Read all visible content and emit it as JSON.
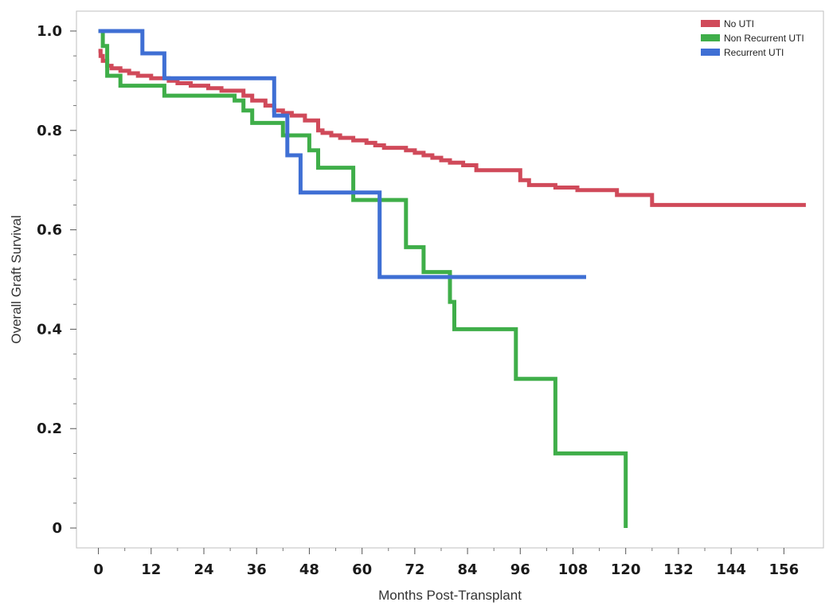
{
  "chart_data": {
    "type": "line",
    "step": true,
    "xlabel": "Months Post-Transplant",
    "ylabel": "Overall Graft Survival",
    "xlim": [
      -5,
      165
    ],
    "ylim": [
      -0.04,
      1.04
    ],
    "x_ticks": [
      0,
      12,
      24,
      36,
      48,
      60,
      72,
      84,
      96,
      108,
      120,
      132,
      144,
      156
    ],
    "y_ticks": [
      0,
      0.2,
      0.4,
      0.6,
      0.8,
      1.0
    ],
    "y_tick_labels": [
      "0",
      "0.2",
      "0.4",
      "0.6",
      "0.8",
      "1.0"
    ],
    "grid": false,
    "legend_position": "top-right",
    "series": [
      {
        "name": "No UTI",
        "color": "#d04a5a",
        "x": [
          0,
          0.5,
          1,
          2,
          3,
          5,
          7,
          9,
          12,
          16,
          18,
          21,
          25,
          28,
          33,
          35,
          38,
          40,
          42,
          44,
          47,
          50,
          51,
          53,
          55,
          58,
          61,
          63,
          65,
          70,
          72,
          74,
          76,
          78,
          80,
          83,
          86,
          96,
          98,
          104,
          109,
          118,
          126,
          161
        ],
        "y": [
          0.96,
          0.95,
          0.94,
          0.93,
          0.925,
          0.92,
          0.915,
          0.91,
          0.905,
          0.9,
          0.895,
          0.89,
          0.885,
          0.88,
          0.87,
          0.86,
          0.85,
          0.84,
          0.835,
          0.83,
          0.82,
          0.8,
          0.795,
          0.79,
          0.785,
          0.78,
          0.775,
          0.77,
          0.765,
          0.76,
          0.755,
          0.75,
          0.745,
          0.74,
          0.735,
          0.73,
          0.72,
          0.7,
          0.69,
          0.685,
          0.68,
          0.67,
          0.65,
          0.65
        ]
      },
      {
        "name": "Non Recurrent UTI",
        "color": "#3fae49",
        "x": [
          0,
          1,
          2,
          5,
          15,
          31,
          33,
          35,
          42,
          48,
          50,
          58,
          64,
          70,
          74,
          80,
          81,
          82,
          95,
          104,
          120,
          120
        ],
        "y": [
          1.0,
          0.97,
          0.91,
          0.89,
          0.87,
          0.86,
          0.84,
          0.815,
          0.79,
          0.76,
          0.725,
          0.66,
          0.66,
          0.565,
          0.515,
          0.455,
          0.4,
          0.4,
          0.3,
          0.15,
          0.15,
          0.0
        ]
      },
      {
        "name": "Recurrent UTI",
        "color": "#3f6fd4",
        "x": [
          0,
          10,
          15,
          40,
          43,
          46,
          64,
          111
        ],
        "y": [
          1.0,
          0.955,
          0.905,
          0.83,
          0.75,
          0.675,
          0.505,
          0.505
        ]
      }
    ]
  }
}
